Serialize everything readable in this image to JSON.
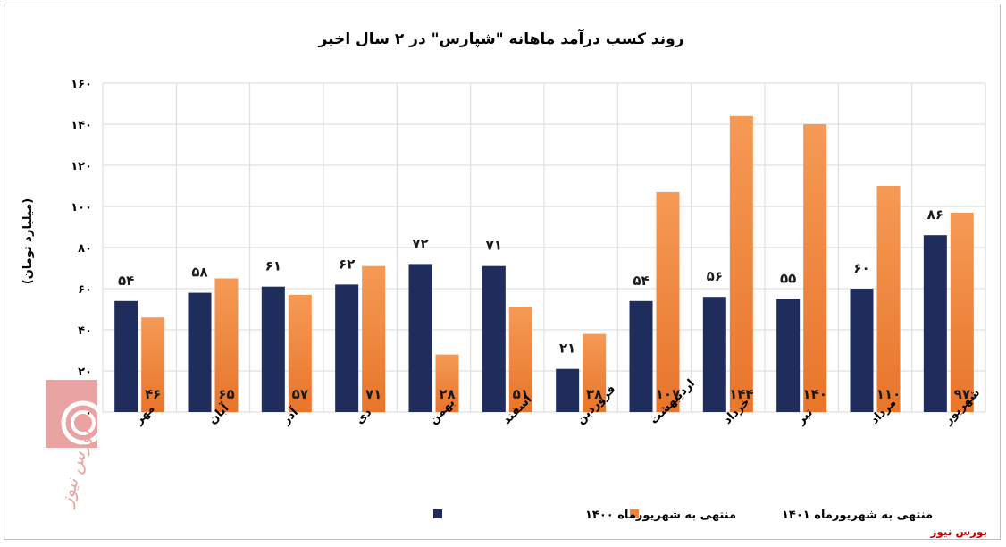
{
  "chart_data": {
    "type": "bar",
    "title": "روند کسب درآمد ماهانه \"شپارس\" در ۲ سال اخیر",
    "ylabel": "(میلیارد تومان)",
    "ylim": [
      0,
      160
    ],
    "yticks": [
      "۰",
      "۲۰",
      "۴۰",
      "۶۰",
      "۸۰",
      "۱۰۰",
      "۱۲۰",
      "۱۴۰",
      "۱۶۰"
    ],
    "ytick_values": [
      0,
      20,
      40,
      60,
      80,
      100,
      120,
      140,
      160
    ],
    "grid": true,
    "legend_position": "bottom",
    "categories": [
      "مهر",
      "آبان",
      "آذر",
      "دی",
      "بهمن",
      "اسفند",
      "فروردین",
      "اردیبهشت",
      "خرداد",
      "تیر",
      "مرداد",
      "شهریور"
    ],
    "series": [
      {
        "name": "منتهی به شهریورماه ۱۴۰۰",
        "color": "#1f2d5c",
        "values": [
          54,
          58,
          61,
          62,
          72,
          71,
          21,
          54,
          56,
          55,
          60,
          86
        ],
        "labels": [
          "۵۴",
          "۵۸",
          "۶۱",
          "۶۲",
          "۷۲",
          "۷۱",
          "۲۱",
          "۵۴",
          "۵۶",
          "۵۵",
          "۶۰",
          "۸۶"
        ]
      },
      {
        "name": "منتهی به شهریورماه ۱۴۰۱",
        "color": "#f0843c",
        "values": [
          46,
          65,
          57,
          71,
          28,
          51,
          38,
          107,
          144,
          140,
          110,
          97
        ],
        "labels": [
          "۴۶",
          "۶۵",
          "۵۷",
          "۷۱",
          "۲۸",
          "۵۱",
          "۳۸",
          "۱۰۷",
          "۱۴۴",
          "۱۴۰",
          "۱۱۰",
          "۹۷"
        ]
      }
    ]
  },
  "watermark": {
    "text": "بورس نیوز",
    "color": "#c0392b"
  },
  "source": "بورس نیوز"
}
